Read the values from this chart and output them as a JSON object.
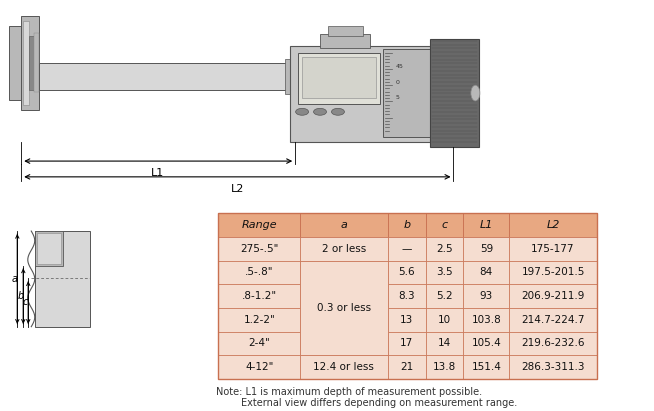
{
  "bg_color": "#ffffff",
  "table_header_color": "#e8a882",
  "table_row_color": "#f5ddd0",
  "table_border_color": "#c87050",
  "headers": [
    "Range",
    "a",
    "b",
    "c",
    "L1",
    "L2"
  ],
  "rows": [
    [
      "275-.5\"",
      "2 or less",
      "—",
      "2.5",
      "59",
      "175-177"
    ],
    [
      ".5-.8\"",
      "",
      "5.6",
      "3.5",
      "84",
      "197.5-201.5"
    ],
    [
      ".8-1.2\"",
      "0.3 or less",
      "8.3",
      "5.2",
      "93",
      "206.9-211.9"
    ],
    [
      "1.2-2\"",
      "",
      "13",
      "10",
      "103.8",
      "214.7-224.7"
    ],
    [
      "2-4\"",
      "",
      "17",
      "14",
      "105.4",
      "219.6-232.6"
    ],
    [
      "4-12\"",
      "12.4 or less",
      "21",
      "13.8",
      "151.4",
      "286.3-311.3"
    ]
  ],
  "note_line1": "Note: L1 is maximum depth of measurement possible.",
  "note_line2": "        External view differs depending on measurement range.",
  "gray_light": "#d8d8d8",
  "gray_med": "#b8b8b8",
  "gray_dark": "#888888",
  "gray_darker": "#555555",
  "gray_body": "#c8c8c8",
  "gray_knob": "#686868"
}
